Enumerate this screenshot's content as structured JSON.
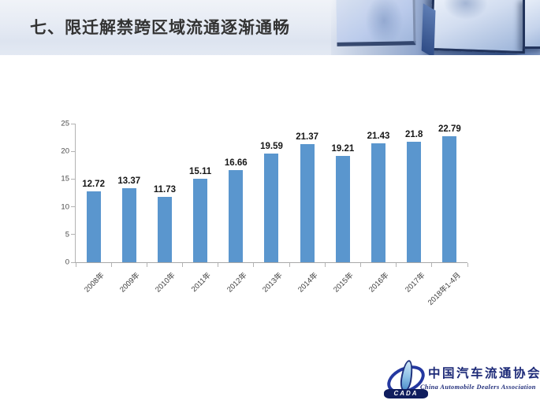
{
  "header": {
    "title": "七、限迁解禁跨区域流通逐渐通畅"
  },
  "chart_data": {
    "type": "bar",
    "categories": [
      "2008年",
      "2009年",
      "2010年",
      "2011年",
      "2012年",
      "2013年",
      "2014年",
      "2015年",
      "2016年",
      "2017年",
      "2018年1-4月"
    ],
    "values": [
      12.72,
      13.37,
      11.73,
      15.11,
      16.66,
      19.59,
      21.37,
      19.21,
      21.43,
      21.8,
      22.79
    ],
    "title": "",
    "xlabel": "",
    "ylabel": "",
    "ylim": [
      0,
      25
    ],
    "yticks": [
      0,
      5,
      10,
      15,
      20,
      25
    ],
    "grid": false,
    "legend": "none",
    "bar_color": "#5a96ce",
    "data_labels": true
  },
  "logo": {
    "acronym": "CADA",
    "name_cn": "中国汽车流通协会",
    "name_en": "China Automobile Dealers Association",
    "color": "#1d2a78"
  }
}
